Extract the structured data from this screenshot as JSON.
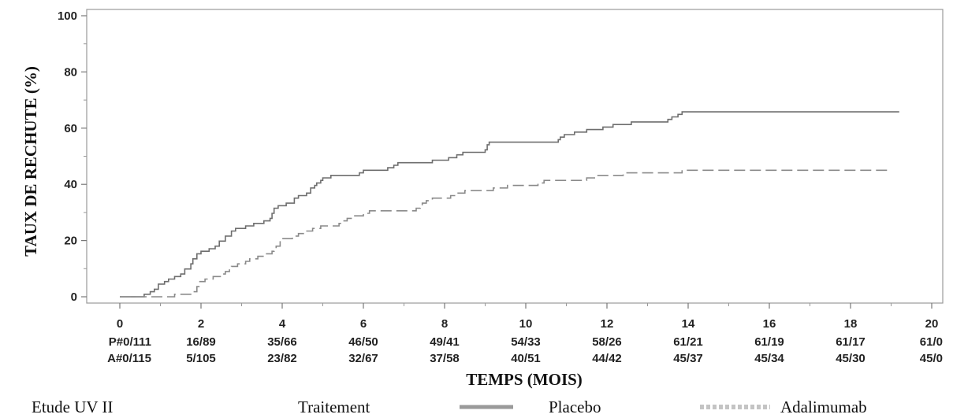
{
  "chart_data": {
    "type": "line",
    "xlabel": "TEMPS (MOIS)",
    "ylabel": "TAUX DE RECHUTE (%)",
    "xlim": [
      0,
      20
    ],
    "ylim": [
      0,
      100
    ],
    "x_ticks": [
      0,
      2,
      4,
      6,
      8,
      10,
      12,
      14,
      16,
      18,
      20
    ],
    "y_ticks": [
      0,
      20,
      40,
      60,
      80,
      100
    ],
    "grid": false,
    "series": [
      {
        "name": "Placebo",
        "style": "solid",
        "color": "#6e6e6e",
        "points": [
          [
            0,
            0
          ],
          [
            0.55,
            0
          ],
          [
            0.6,
            0.9
          ],
          [
            0.75,
            1.8
          ],
          [
            0.85,
            2.7
          ],
          [
            0.95,
            4.5
          ],
          [
            1.1,
            5.4
          ],
          [
            1.2,
            6.3
          ],
          [
            1.35,
            7.2
          ],
          [
            1.5,
            8.1
          ],
          [
            1.6,
            9.9
          ],
          [
            1.75,
            11.7
          ],
          [
            1.8,
            13.5
          ],
          [
            1.9,
            15.3
          ],
          [
            2.0,
            16.2
          ],
          [
            2.2,
            17.1
          ],
          [
            2.35,
            18.0
          ],
          [
            2.45,
            19.8
          ],
          [
            2.6,
            21.6
          ],
          [
            2.75,
            23.4
          ],
          [
            2.85,
            24.3
          ],
          [
            3.1,
            25.2
          ],
          [
            3.3,
            26.1
          ],
          [
            3.55,
            27.0
          ],
          [
            3.7,
            27.9
          ],
          [
            3.75,
            29.7
          ],
          [
            3.8,
            31.5
          ],
          [
            3.9,
            32.4
          ],
          [
            4.1,
            33.3
          ],
          [
            4.3,
            35.1
          ],
          [
            4.4,
            36.0
          ],
          [
            4.6,
            36.9
          ],
          [
            4.7,
            38.7
          ],
          [
            4.8,
            39.6
          ],
          [
            4.85,
            40.5
          ],
          [
            4.95,
            41.4
          ],
          [
            5.0,
            42.3
          ],
          [
            5.2,
            43.2
          ],
          [
            5.9,
            44.1
          ],
          [
            6.0,
            45.0
          ],
          [
            6.6,
            45.9
          ],
          [
            6.75,
            46.8
          ],
          [
            6.85,
            47.7
          ],
          [
            7.7,
            48.6
          ],
          [
            8.1,
            49.5
          ],
          [
            8.3,
            50.5
          ],
          [
            8.45,
            51.4
          ],
          [
            9.0,
            52.3
          ],
          [
            9.05,
            54.1
          ],
          [
            9.1,
            55.0
          ],
          [
            10.8,
            55.9
          ],
          [
            10.85,
            56.8
          ],
          [
            10.95,
            57.7
          ],
          [
            11.2,
            58.6
          ],
          [
            11.5,
            59.5
          ],
          [
            11.9,
            60.4
          ],
          [
            12.15,
            61.3
          ],
          [
            12.6,
            62.2
          ],
          [
            13.5,
            63.1
          ],
          [
            13.6,
            64.0
          ],
          [
            13.75,
            64.9
          ],
          [
            13.85,
            65.8
          ],
          [
            19.2,
            65.8
          ]
        ]
      },
      {
        "name": "Adalimumab",
        "style": "dashed",
        "color": "#8a8a8a",
        "points": [
          [
            0,
            0
          ],
          [
            1.3,
            0
          ],
          [
            1.35,
            0.9
          ],
          [
            1.8,
            1.8
          ],
          [
            1.9,
            3.6
          ],
          [
            1.95,
            5.4
          ],
          [
            2.1,
            6.3
          ],
          [
            2.3,
            7.2
          ],
          [
            2.5,
            8.1
          ],
          [
            2.6,
            9.0
          ],
          [
            2.7,
            9.9
          ],
          [
            2.75,
            10.8
          ],
          [
            2.9,
            11.7
          ],
          [
            3.1,
            12.6
          ],
          [
            3.2,
            13.5
          ],
          [
            3.4,
            14.4
          ],
          [
            3.6,
            15.3
          ],
          [
            3.75,
            16.2
          ],
          [
            3.8,
            17.1
          ],
          [
            3.85,
            18.0
          ],
          [
            3.95,
            19.8
          ],
          [
            4.0,
            20.7
          ],
          [
            4.25,
            21.6
          ],
          [
            4.4,
            22.5
          ],
          [
            4.55,
            23.4
          ],
          [
            4.75,
            24.3
          ],
          [
            4.95,
            25.2
          ],
          [
            5.4,
            26.1
          ],
          [
            5.5,
            27.0
          ],
          [
            5.6,
            27.9
          ],
          [
            5.7,
            28.8
          ],
          [
            6.0,
            29.7
          ],
          [
            6.15,
            30.6
          ],
          [
            7.3,
            31.5
          ],
          [
            7.4,
            32.4
          ],
          [
            7.45,
            33.3
          ],
          [
            7.55,
            34.2
          ],
          [
            7.7,
            35.1
          ],
          [
            8.15,
            36.0
          ],
          [
            8.3,
            36.9
          ],
          [
            8.5,
            37.8
          ],
          [
            9.2,
            38.7
          ],
          [
            9.55,
            39.6
          ],
          [
            10.3,
            40.5
          ],
          [
            10.45,
            41.4
          ],
          [
            11.5,
            42.3
          ],
          [
            11.75,
            43.2
          ],
          [
            12.4,
            44.1
          ],
          [
            13.85,
            45.0
          ],
          [
            19.0,
            45.0
          ]
        ]
      }
    ],
    "risk_table": {
      "rows": [
        {
          "values": [
            "P#0/111",
            "16/89",
            "35/66",
            "46/50",
            "49/41",
            "54/33",
            "58/26",
            "61/21",
            "61/19",
            "61/17",
            "61/0"
          ]
        },
        {
          "values": [
            "A#0/115",
            "5/105",
            "23/82",
            "32/67",
            "37/58",
            "40/51",
            "44/42",
            "45/37",
            "45/34",
            "45/30",
            "45/0"
          ]
        }
      ]
    }
  },
  "legend": {
    "study": "Etude UV II",
    "treatment": "Traitement",
    "items": [
      "Placebo",
      "Adalimumab"
    ]
  }
}
